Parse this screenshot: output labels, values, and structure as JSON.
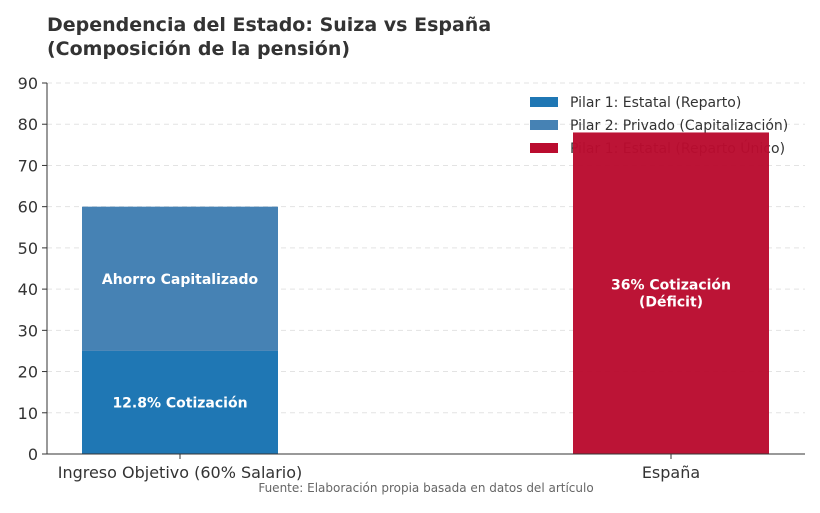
{
  "chart_data": {
    "type": "bar",
    "stacked": true,
    "title": "Dependencia del Estado: Suiza vs España\n(Composición de la pensión)",
    "title_lines": [
      "Dependencia del Estado: Suiza vs España",
      "(Composición de la pensión)"
    ],
    "xlabel": "",
    "ylabel": "",
    "categories": [
      "Ingreso Objetivo (60% Salario)",
      "España"
    ],
    "ylim": [
      0,
      90
    ],
    "yticks": [
      0,
      10,
      20,
      30,
      40,
      50,
      60,
      70,
      80,
      90
    ],
    "grid": true,
    "legend_position": "top-right",
    "series": [
      {
        "name": "Pilar 1: Estatal (Reparto)",
        "color": "#1f77b4",
        "values": [
          25,
          null
        ],
        "label": "12.8% Cotización"
      },
      {
        "name": "Pilar 2: Privado (Capitalización)",
        "color": "#4682b4",
        "values": [
          35,
          null
        ],
        "label": "Ahorro Capitalizado"
      },
      {
        "name": "Pilar 1: Estatal (Reparto Único)",
        "color": "#ba0c2f",
        "values": [
          null,
          78
        ],
        "label": "36% Cotización\n(Déficit)",
        "label_lines": [
          "36% Cotización",
          "(Déficit)"
        ]
      }
    ],
    "footnote": "Fuente: Elaboración propia basada en datos del artículo"
  }
}
